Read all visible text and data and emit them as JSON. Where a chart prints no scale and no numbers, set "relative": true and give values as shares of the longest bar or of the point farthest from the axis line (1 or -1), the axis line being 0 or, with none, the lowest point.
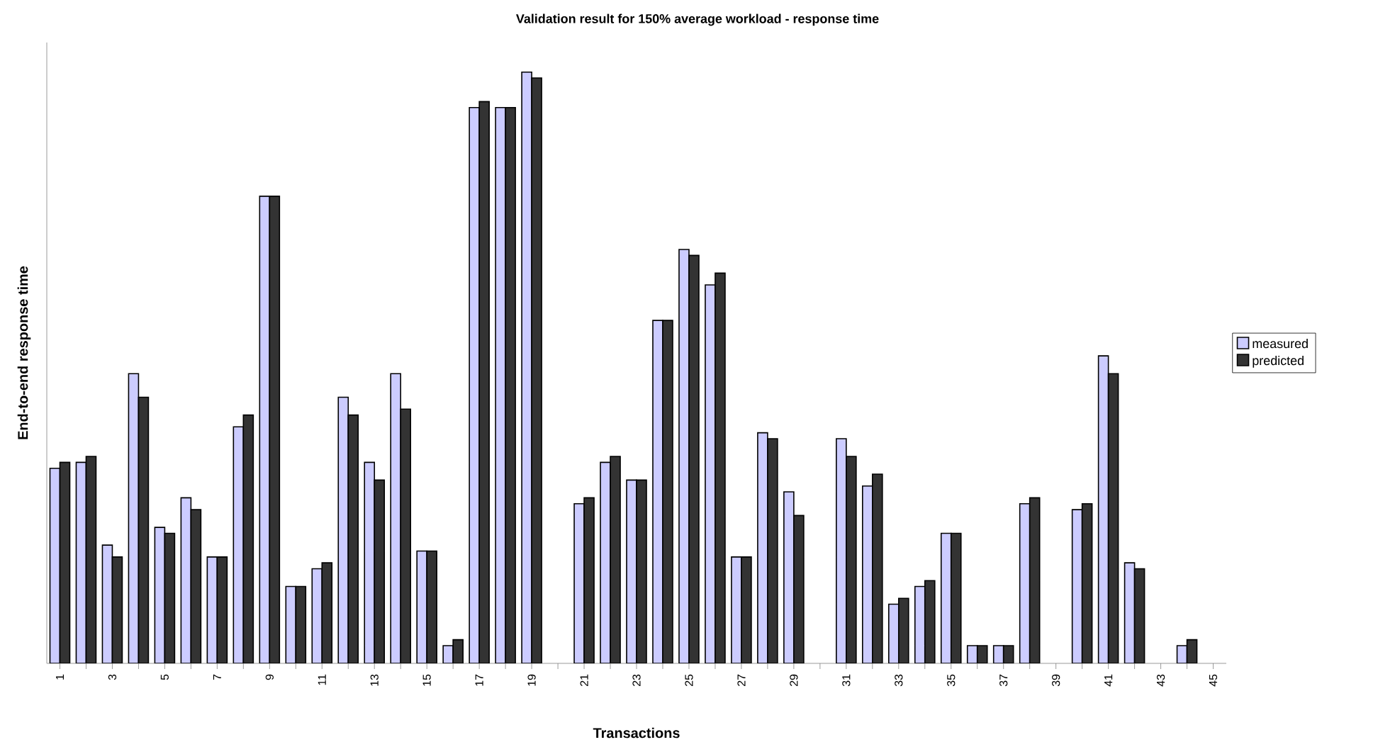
{
  "chart_data": {
    "type": "bar",
    "title": "Validation result for 150%  average workload - response time",
    "xlabel": "Transactions",
    "ylabel": "End-to-end response time",
    "categories": [
      "1",
      null,
      "3",
      null,
      "5",
      null,
      "7",
      null,
      "9",
      null,
      "11",
      null,
      "13",
      null,
      "15",
      null,
      "17",
      null,
      "19",
      null,
      "21",
      null,
      "23",
      null,
      "25",
      null,
      "27",
      null,
      "29",
      null,
      "31",
      null,
      "33",
      null,
      "35",
      null,
      "37",
      null,
      "39",
      null,
      "41",
      null,
      "43",
      null,
      "45"
    ],
    "relative": true,
    "legend": "right",
    "grid": false,
    "series": [
      {
        "name": "measured",
        "color": "#ccccff",
        "values": [
          0.33,
          0.34,
          0.2,
          0.49,
          0.23,
          0.28,
          0.18,
          0.4,
          0.79,
          0.13,
          0.16,
          0.45,
          0.34,
          0.49,
          0.19,
          0.03,
          0.94,
          0.94,
          1.0,
          null,
          0.27,
          0.34,
          0.31,
          0.58,
          0.7,
          0.64,
          0.18,
          0.39,
          0.29,
          null,
          0.38,
          0.3,
          0.1,
          0.13,
          0.22,
          0.03,
          0.03,
          0.27,
          null,
          0.26,
          0.52,
          0.17,
          null,
          0.03,
          null
        ]
      },
      {
        "name": "predicted",
        "color": "#333333",
        "values": [
          0.34,
          0.35,
          0.18,
          0.45,
          0.22,
          0.26,
          0.18,
          0.42,
          0.79,
          0.13,
          0.17,
          0.42,
          0.31,
          0.43,
          0.19,
          0.04,
          0.95,
          0.94,
          0.99,
          null,
          0.28,
          0.35,
          0.31,
          0.58,
          0.69,
          0.66,
          0.18,
          0.38,
          0.25,
          null,
          0.35,
          0.32,
          0.11,
          0.14,
          0.22,
          0.03,
          0.03,
          0.28,
          null,
          0.27,
          0.49,
          0.16,
          null,
          0.04,
          null
        ]
      }
    ]
  }
}
